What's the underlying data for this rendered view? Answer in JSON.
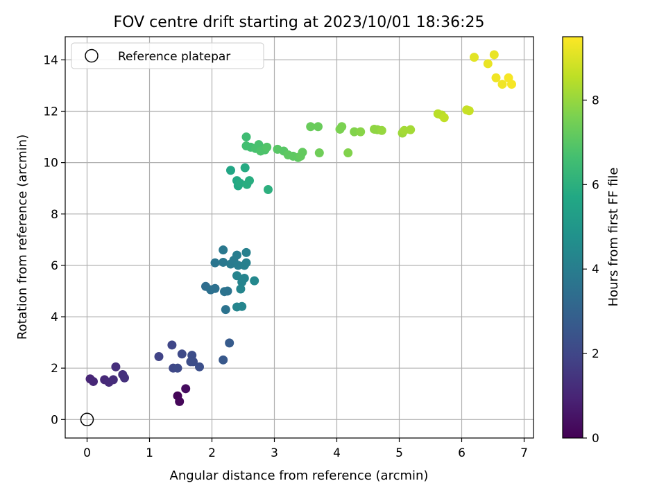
{
  "chart_data": {
    "type": "scatter",
    "title": "FOV centre drift starting at 2023/10/01 18:36:25",
    "xlabel": "Angular distance from reference (arcmin)",
    "ylabel": "Rotation from reference (arcmin)",
    "xlim": [
      -0.35,
      7.15
    ],
    "ylim": [
      -0.72,
      14.9
    ],
    "xticks": [
      0,
      1,
      2,
      3,
      4,
      5,
      6,
      7
    ],
    "yticks": [
      0,
      2,
      4,
      6,
      8,
      10,
      12,
      14
    ],
    "grid": true,
    "legend": {
      "placement": "top-left",
      "entries": [
        "Reference platepar"
      ]
    },
    "reference_point": {
      "label": "Reference platepar",
      "x": 0,
      "y": 0
    },
    "colorbar": {
      "label": "Hours from first FF file",
      "range": [
        0,
        9.5
      ],
      "ticks": [
        0,
        2,
        4,
        6,
        8
      ],
      "colormap": "viridis"
    },
    "points": [
      {
        "x": 1.45,
        "y": 0.92,
        "h": 0.1
      },
      {
        "x": 1.48,
        "y": 0.7,
        "h": 0.15
      },
      {
        "x": 1.58,
        "y": 1.2,
        "h": 0.3
      },
      {
        "x": 0.05,
        "y": 1.58,
        "h": 1.0
      },
      {
        "x": 0.1,
        "y": 1.48,
        "h": 1.05
      },
      {
        "x": 0.28,
        "y": 1.55,
        "h": 1.1
      },
      {
        "x": 0.35,
        "y": 1.45,
        "h": 1.15
      },
      {
        "x": 0.42,
        "y": 1.55,
        "h": 1.2
      },
      {
        "x": 0.46,
        "y": 2.05,
        "h": 1.25
      },
      {
        "x": 0.57,
        "y": 1.75,
        "h": 1.3
      },
      {
        "x": 0.6,
        "y": 1.62,
        "h": 1.35
      },
      {
        "x": 1.15,
        "y": 2.45,
        "h": 1.9
      },
      {
        "x": 1.36,
        "y": 2.9,
        "h": 2.0
      },
      {
        "x": 1.38,
        "y": 2.0,
        "h": 2.05
      },
      {
        "x": 1.45,
        "y": 2.0,
        "h": 2.1
      },
      {
        "x": 1.52,
        "y": 2.55,
        "h": 2.1
      },
      {
        "x": 1.68,
        "y": 2.5,
        "h": 2.2
      },
      {
        "x": 1.7,
        "y": 2.25,
        "h": 2.2
      },
      {
        "x": 1.66,
        "y": 2.25,
        "h": 2.25
      },
      {
        "x": 1.8,
        "y": 2.05,
        "h": 2.3
      },
      {
        "x": 2.18,
        "y": 2.32,
        "h": 2.6
      },
      {
        "x": 2.28,
        "y": 2.98,
        "h": 2.7
      },
      {
        "x": 1.9,
        "y": 5.18,
        "h": 3.4
      },
      {
        "x": 1.98,
        "y": 5.05,
        "h": 3.5
      },
      {
        "x": 2.05,
        "y": 5.1,
        "h": 3.5
      },
      {
        "x": 2.2,
        "y": 4.98,
        "h": 3.6
      },
      {
        "x": 2.25,
        "y": 5.0,
        "h": 3.6
      },
      {
        "x": 2.22,
        "y": 4.28,
        "h": 3.6
      },
      {
        "x": 2.05,
        "y": 6.1,
        "h": 3.7
      },
      {
        "x": 2.18,
        "y": 6.12,
        "h": 3.8
      },
      {
        "x": 2.18,
        "y": 6.6,
        "h": 3.8
      },
      {
        "x": 2.3,
        "y": 6.05,
        "h": 3.9
      },
      {
        "x": 2.35,
        "y": 6.2,
        "h": 3.9
      },
      {
        "x": 2.4,
        "y": 6.4,
        "h": 4.0
      },
      {
        "x": 2.42,
        "y": 6.0,
        "h": 4.0
      },
      {
        "x": 2.52,
        "y": 6.0,
        "h": 4.1
      },
      {
        "x": 2.55,
        "y": 6.1,
        "h": 4.1
      },
      {
        "x": 2.55,
        "y": 6.5,
        "h": 4.1
      },
      {
        "x": 2.4,
        "y": 5.6,
        "h": 4.2
      },
      {
        "x": 2.48,
        "y": 5.35,
        "h": 4.2
      },
      {
        "x": 2.52,
        "y": 5.5,
        "h": 4.2
      },
      {
        "x": 2.46,
        "y": 5.08,
        "h": 4.3
      },
      {
        "x": 2.4,
        "y": 4.38,
        "h": 4.3
      },
      {
        "x": 2.48,
        "y": 4.4,
        "h": 4.3
      },
      {
        "x": 2.68,
        "y": 5.4,
        "h": 4.4
      },
      {
        "x": 2.3,
        "y": 9.7,
        "h": 5.6
      },
      {
        "x": 2.4,
        "y": 9.3,
        "h": 5.7
      },
      {
        "x": 2.42,
        "y": 9.1,
        "h": 5.7
      },
      {
        "x": 2.45,
        "y": 9.2,
        "h": 5.8
      },
      {
        "x": 2.53,
        "y": 9.8,
        "h": 5.8
      },
      {
        "x": 2.56,
        "y": 9.15,
        "h": 5.9
      },
      {
        "x": 2.6,
        "y": 9.3,
        "h": 5.9
      },
      {
        "x": 2.9,
        "y": 8.95,
        "h": 6.0
      },
      {
        "x": 2.55,
        "y": 11.0,
        "h": 6.5
      },
      {
        "x": 2.55,
        "y": 10.65,
        "h": 6.6
      },
      {
        "x": 2.62,
        "y": 10.6,
        "h": 6.6
      },
      {
        "x": 2.7,
        "y": 10.55,
        "h": 6.7
      },
      {
        "x": 2.75,
        "y": 10.7,
        "h": 6.7
      },
      {
        "x": 2.78,
        "y": 10.45,
        "h": 6.8
      },
      {
        "x": 2.85,
        "y": 10.5,
        "h": 6.8
      },
      {
        "x": 2.88,
        "y": 10.6,
        "h": 6.9
      },
      {
        "x": 3.05,
        "y": 10.52,
        "h": 7.0
      },
      {
        "x": 3.15,
        "y": 10.45,
        "h": 7.0
      },
      {
        "x": 3.22,
        "y": 10.3,
        "h": 7.1
      },
      {
        "x": 3.3,
        "y": 10.25,
        "h": 7.1
      },
      {
        "x": 3.38,
        "y": 10.2,
        "h": 7.1
      },
      {
        "x": 3.42,
        "y": 10.25,
        "h": 7.2
      },
      {
        "x": 3.45,
        "y": 10.4,
        "h": 7.2
      },
      {
        "x": 3.58,
        "y": 11.4,
        "h": 7.3
      },
      {
        "x": 3.7,
        "y": 11.4,
        "h": 7.3
      },
      {
        "x": 3.72,
        "y": 10.38,
        "h": 7.4
      },
      {
        "x": 4.05,
        "y": 11.3,
        "h": 7.6
      },
      {
        "x": 4.08,
        "y": 11.4,
        "h": 7.6
      },
      {
        "x": 4.18,
        "y": 10.38,
        "h": 7.7
      },
      {
        "x": 4.28,
        "y": 11.2,
        "h": 7.7
      },
      {
        "x": 4.38,
        "y": 11.2,
        "h": 7.8
      },
      {
        "x": 4.6,
        "y": 11.3,
        "h": 7.9
      },
      {
        "x": 4.65,
        "y": 11.28,
        "h": 7.9
      },
      {
        "x": 4.72,
        "y": 11.25,
        "h": 8.0
      },
      {
        "x": 5.05,
        "y": 11.15,
        "h": 8.1
      },
      {
        "x": 5.08,
        "y": 11.25,
        "h": 8.2
      },
      {
        "x": 5.18,
        "y": 11.28,
        "h": 8.2
      },
      {
        "x": 5.62,
        "y": 11.9,
        "h": 8.5
      },
      {
        "x": 5.68,
        "y": 11.85,
        "h": 8.5
      },
      {
        "x": 5.72,
        "y": 11.75,
        "h": 8.6
      },
      {
        "x": 6.08,
        "y": 12.05,
        "h": 8.7
      },
      {
        "x": 6.12,
        "y": 12.02,
        "h": 8.7
      },
      {
        "x": 6.2,
        "y": 14.1,
        "h": 9.1
      },
      {
        "x": 6.52,
        "y": 14.2,
        "h": 9.2
      },
      {
        "x": 6.42,
        "y": 13.85,
        "h": 9.2
      },
      {
        "x": 6.55,
        "y": 13.3,
        "h": 9.3
      },
      {
        "x": 6.65,
        "y": 13.05,
        "h": 9.3
      },
      {
        "x": 6.75,
        "y": 13.3,
        "h": 9.4
      },
      {
        "x": 6.8,
        "y": 13.05,
        "h": 9.4
      }
    ]
  }
}
